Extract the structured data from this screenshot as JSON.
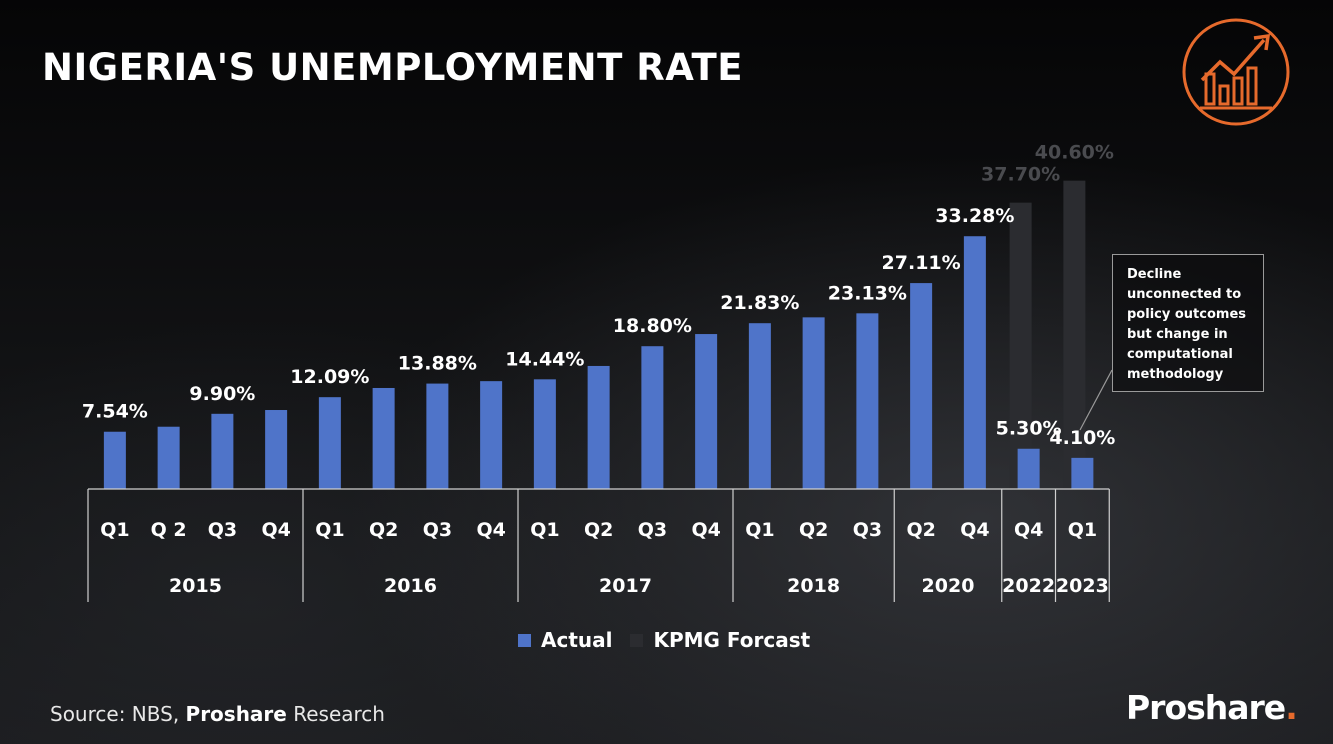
{
  "colors": {
    "actual": "#4f74c9",
    "forecast": "#2b2c30",
    "accent": "#e66a2c"
  },
  "header": {
    "logo_icon": "growth-chart-icon"
  },
  "chart_data": {
    "type": "bar",
    "title": "NIGERIA'S UNEMPLOYMENT RATE",
    "ylim": [
      0,
      42
    ],
    "ylabel": "",
    "xlabel": "",
    "grid": false,
    "legend_position": "bottom",
    "categories": [
      {
        "quarter": "Q1",
        "year": "2015"
      },
      {
        "quarter": "Q 2",
        "year": "2015"
      },
      {
        "quarter": "Q3",
        "year": "2015"
      },
      {
        "quarter": "Q4",
        "year": "2015"
      },
      {
        "quarter": "Q1",
        "year": "2016"
      },
      {
        "quarter": "Q2",
        "year": "2016"
      },
      {
        "quarter": "Q3",
        "year": "2016"
      },
      {
        "quarter": "Q4",
        "year": "2016"
      },
      {
        "quarter": "Q1",
        "year": "2017"
      },
      {
        "quarter": "Q2",
        "year": "2017"
      },
      {
        "quarter": "Q3",
        "year": "2017"
      },
      {
        "quarter": "Q4",
        "year": "2017"
      },
      {
        "quarter": "Q1",
        "year": "2018"
      },
      {
        "quarter": "Q2",
        "year": "2018"
      },
      {
        "quarter": "Q3",
        "year": "2018"
      },
      {
        "quarter": "Q2",
        "year": "2020"
      },
      {
        "quarter": "Q4",
        "year": "2020"
      },
      {
        "quarter": "Q4",
        "year": "2022"
      },
      {
        "quarter": "Q1",
        "year": "2023"
      }
    ],
    "years": [
      "2015",
      "2016",
      "2017",
      "2018",
      "2020",
      "2022",
      "2023"
    ],
    "series": [
      {
        "name": "Actual",
        "values": [
          7.54,
          8.2,
          9.9,
          10.4,
          12.09,
          13.3,
          13.88,
          14.2,
          14.44,
          16.2,
          18.8,
          20.4,
          21.83,
          22.6,
          23.13,
          27.11,
          33.28,
          5.3,
          4.1
        ],
        "labels": [
          "7.54%",
          "",
          "9.90%",
          "",
          "12.09%",
          "",
          "13.88%",
          "",
          "14.44%",
          "",
          "18.80%",
          "",
          "21.83%",
          "",
          "23.13%",
          "27.11%",
          "33.28%",
          "5.30%",
          "4.10%"
        ]
      },
      {
        "name": "KPMG Forcast",
        "values": [
          null,
          null,
          null,
          null,
          null,
          null,
          null,
          null,
          null,
          null,
          null,
          null,
          null,
          null,
          null,
          null,
          null,
          37.7,
          40.6
        ],
        "labels": [
          "",
          "",
          "",
          "",
          "",
          "",
          "",
          "",
          "",
          "",
          "",
          "",
          "",
          "",
          "",
          "",
          "",
          "37.70%",
          "40.60%"
        ]
      }
    ],
    "annotation": "Decline unconnected to policy outcomes but change in computational methodology"
  },
  "footer": {
    "source_prefix": "Source: NBS, ",
    "source_bold": "Proshare",
    "source_suffix": " Research",
    "brand": "Proshare",
    "brand_dot": "."
  }
}
